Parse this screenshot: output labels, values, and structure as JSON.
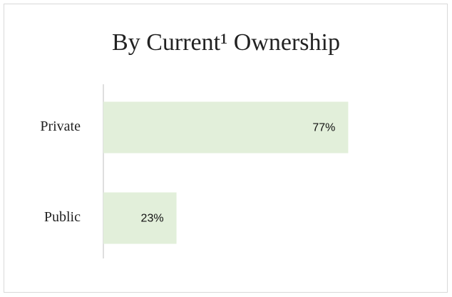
{
  "chart_data": {
    "type": "barh",
    "title": "By Current¹ Ownership",
    "categories": [
      "Private",
      "Public"
    ],
    "values": [
      77,
      23
    ],
    "value_labels": [
      "77%",
      "23%"
    ],
    "color": "#e2efda",
    "xlim": [
      0,
      100
    ]
  }
}
